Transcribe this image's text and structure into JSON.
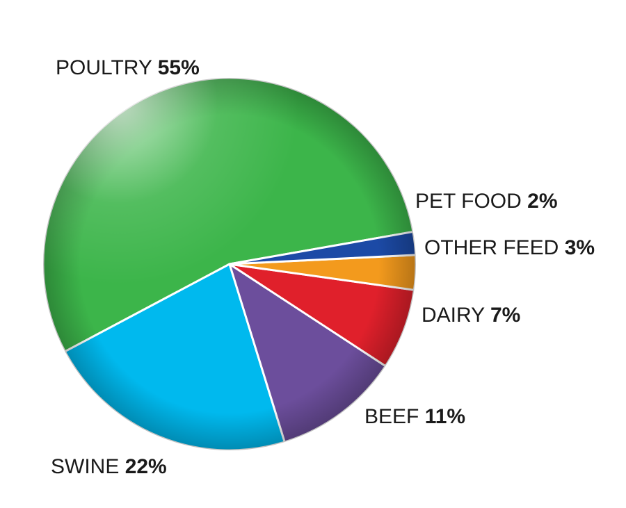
{
  "chart_data": {
    "type": "pie",
    "categories": [
      "POULTRY",
      "SWINE",
      "BEEF",
      "DAIRY",
      "OTHER FEED",
      "PET FOOD"
    ],
    "values": [
      55,
      22,
      11,
      7,
      3,
      2
    ],
    "percent_labels": [
      "55%",
      "22%",
      "11%",
      "7%",
      "3%",
      "2%"
    ],
    "colors": [
      "#3cb54a",
      "#00b9ee",
      "#6c4e9c",
      "#e0202b",
      "#f39a1d",
      "#1c4aa6"
    ],
    "legend": "none"
  }
}
